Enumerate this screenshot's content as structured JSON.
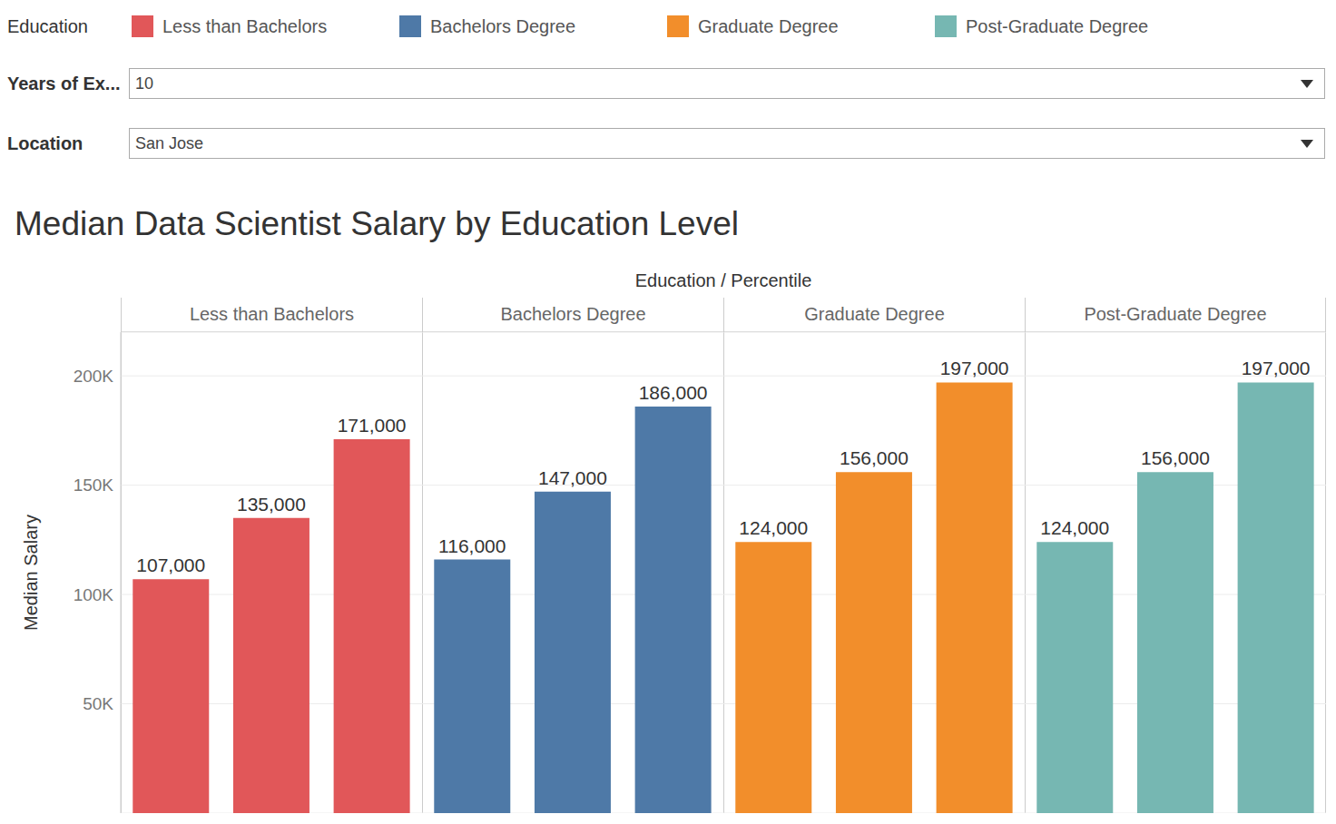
{
  "chart_data": {
    "type": "bar",
    "title": "Median Data Scientist Salary by Education Level",
    "x_label": "Education / Percentile",
    "y_label": "Median Salary",
    "legend_title": "Education",
    "legend": "top",
    "filters": [
      {
        "label": "Years of Ex...",
        "value": "10"
      },
      {
        "label": "Location",
        "value": "San Jose"
      }
    ],
    "categories": [
      null,
      null,
      null
    ],
    "series": [
      {
        "name": "Less than Bachelors",
        "color": "#e15759",
        "values": [
          107000,
          135000,
          171000
        ],
        "value_labels": [
          "107,000",
          "135,000",
          "171,000"
        ]
      },
      {
        "name": "Bachelors Degree",
        "color": "#4e79a7",
        "values": [
          116000,
          147000,
          186000
        ],
        "value_labels": [
          "116,000",
          "147,000",
          "186,000"
        ]
      },
      {
        "name": "Graduate Degree",
        "color": "#f28e2b",
        "values": [
          124000,
          156000,
          197000
        ],
        "value_labels": [
          "124,000",
          "156,000",
          "197,000"
        ]
      },
      {
        "name": "Post-Graduate Degree",
        "color": "#76b7b2",
        "values": [
          124000,
          156000,
          197000
        ],
        "value_labels": [
          "124,000",
          "156,000",
          "197,000"
        ]
      }
    ],
    "ylim": [
      0,
      220000
    ],
    "yticks": [
      {
        "value": 50000,
        "label": "50K"
      },
      {
        "value": 100000,
        "label": "100K"
      },
      {
        "value": 150000,
        "label": "150K"
      },
      {
        "value": 200000,
        "label": "200K"
      }
    ],
    "grid": true,
    "data_labels": true,
    "tick_labels": "y"
  }
}
